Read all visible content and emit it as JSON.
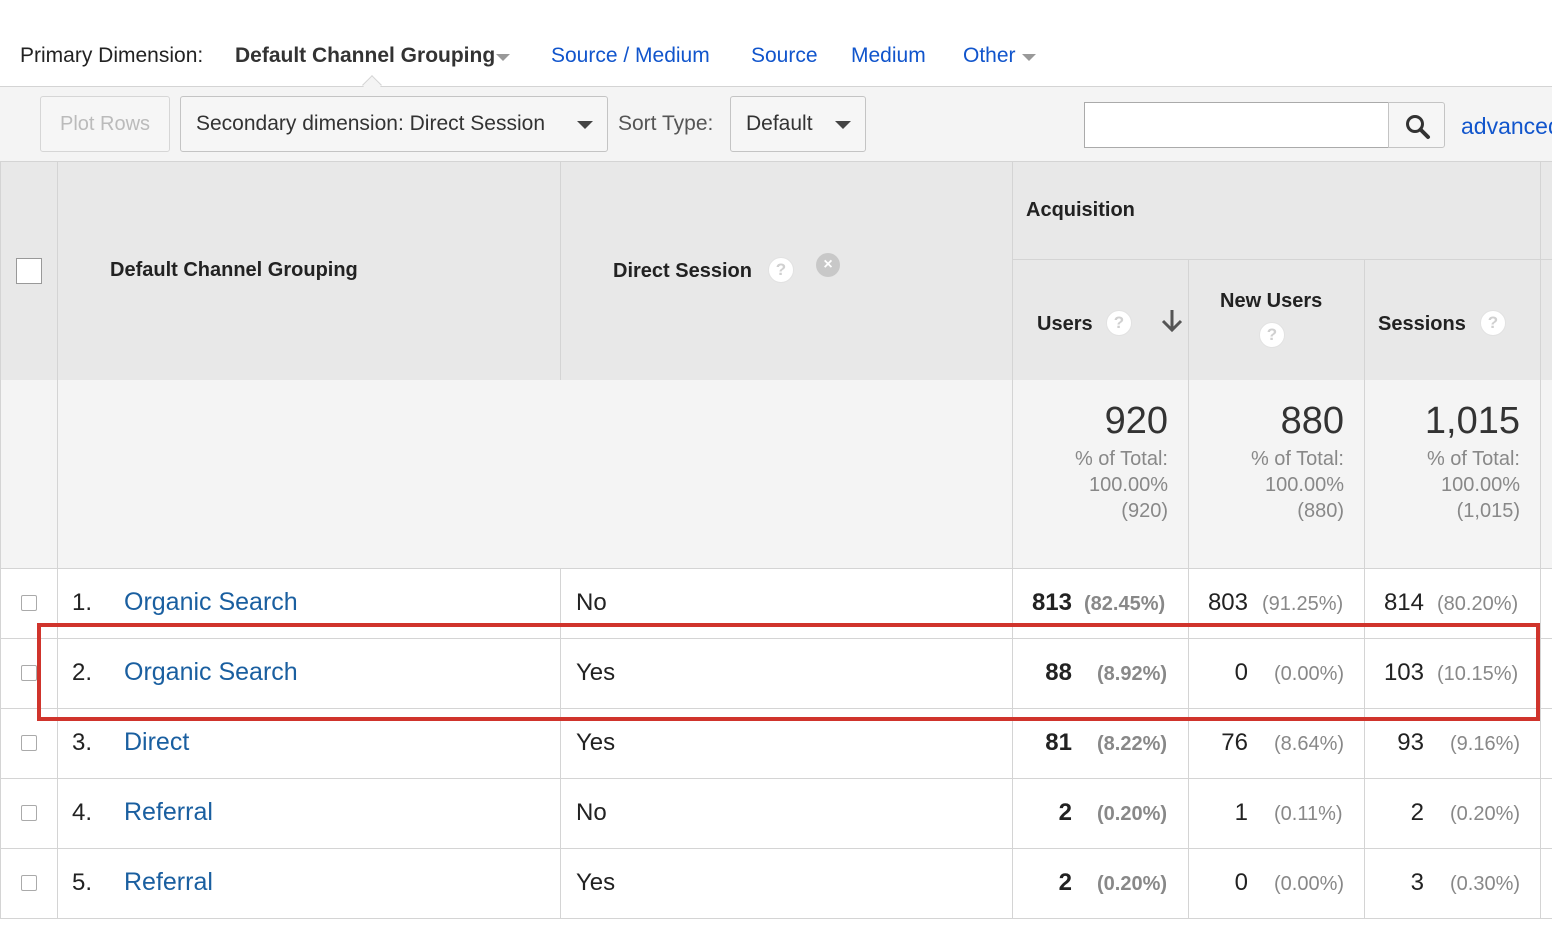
{
  "primary_dimension": {
    "label": "Primary Dimension:",
    "active": "Default Channel Grouping",
    "links": [
      "Source / Medium",
      "Source",
      "Medium",
      "Other"
    ]
  },
  "toolbar": {
    "plot_rows": "Plot Rows",
    "secondary_dimension": "Secondary dimension: Direct Session",
    "sort_type_label": "Sort Type:",
    "sort_type_value": "Default",
    "search_value": "",
    "advanced_link": "advanced"
  },
  "table": {
    "headers": {
      "dimension1": "Default Channel Grouping",
      "dimension2": "Direct Session",
      "group": "Acquisition",
      "users": "Users",
      "new_users": "New Users",
      "sessions": "Sessions",
      "help": "?",
      "remove": "×"
    },
    "totals": {
      "users": {
        "value": "920",
        "pct_label": "% of Total:",
        "pct": "100.00%",
        "abs": "(920)"
      },
      "new_users": {
        "value": "880",
        "pct_label": "% of Total:",
        "pct": "100.00%",
        "abs": "(880)"
      },
      "sessions": {
        "value": "1,015",
        "pct_label": "% of Total:",
        "pct": "100.00%",
        "abs": "(1,015)"
      }
    },
    "rows": [
      {
        "num": "1.",
        "channel": "Organic Search",
        "direct": "No",
        "users": "813",
        "users_pct": "(82.45%)",
        "new_users": "803",
        "new_users_pct": "(91.25%)",
        "sessions": "814",
        "sessions_pct": "(80.20%)"
      },
      {
        "num": "2.",
        "channel": "Organic Search",
        "direct": "Yes",
        "users": "88",
        "users_pct": "(8.92%)",
        "new_users": "0",
        "new_users_pct": "(0.00%)",
        "sessions": "103",
        "sessions_pct": "(10.15%)"
      },
      {
        "num": "3.",
        "channel": "Direct",
        "direct": "Yes",
        "users": "81",
        "users_pct": "(8.22%)",
        "new_users": "76",
        "new_users_pct": "(8.64%)",
        "sessions": "93",
        "sessions_pct": "(9.16%)"
      },
      {
        "num": "4.",
        "channel": "Referral",
        "direct": "No",
        "users": "2",
        "users_pct": "(0.20%)",
        "new_users": "1",
        "new_users_pct": "(0.11%)",
        "sessions": "2",
        "sessions_pct": "(0.20%)"
      },
      {
        "num": "5.",
        "channel": "Referral",
        "direct": "Yes",
        "users": "2",
        "users_pct": "(0.20%)",
        "new_users": "0",
        "new_users_pct": "(0.00%)",
        "sessions": "3",
        "sessions_pct": "(0.30%)"
      }
    ]
  },
  "colors": {
    "link": "#1a5fa0",
    "highlight": "#d0342c",
    "header_bg": "#e8e8e8"
  }
}
